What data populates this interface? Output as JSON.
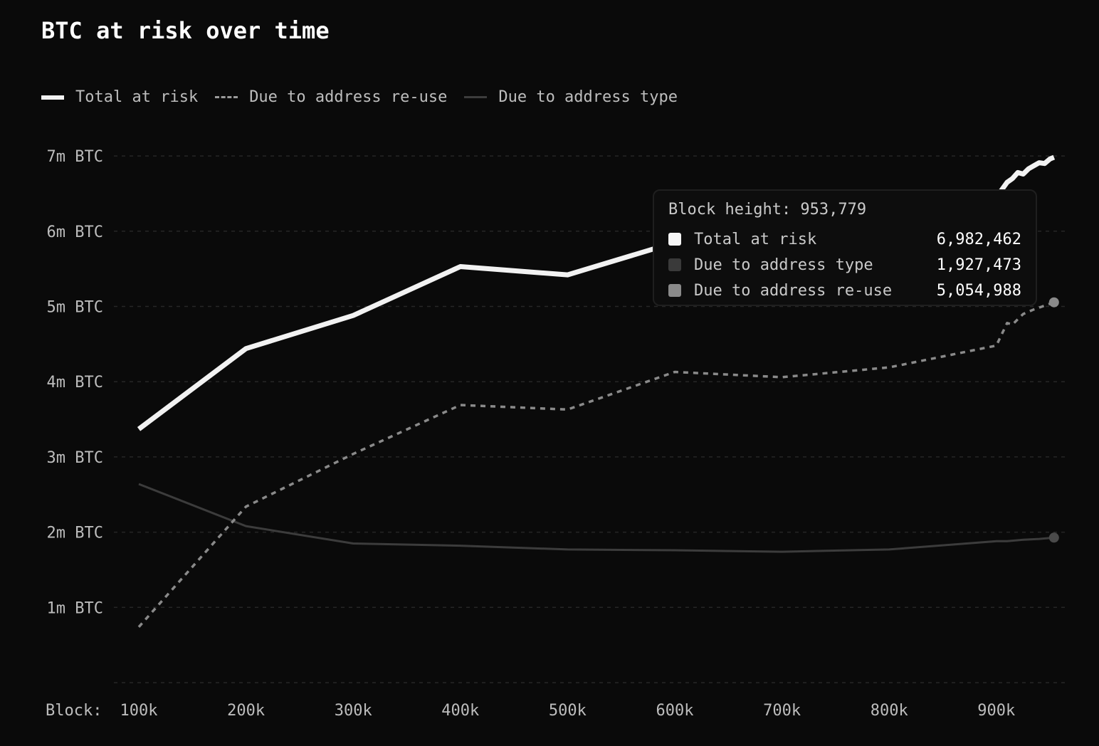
{
  "chart_data": {
    "type": "line",
    "title": "BTC at risk over time",
    "xlabel": "Block:",
    "ylabel": "",
    "x_ticks": [
      "100k",
      "200k",
      "300k",
      "400k",
      "500k",
      "600k",
      "700k",
      "800k",
      "900k"
    ],
    "y_ticks": [
      "1m BTC",
      "2m BTC",
      "3m BTC",
      "4m BTC",
      "5m BTC",
      "6m BTC",
      "7m BTC"
    ],
    "xlim": [
      100000,
      960000
    ],
    "ylim": [
      0,
      7400000
    ],
    "legend_position": "top-left",
    "grid": "horizontal-dashed",
    "colors": {
      "background": "#0a0a0a",
      "total": "#f2f2f2",
      "reuse": "#8a8a8a",
      "type": "#3c3c3c",
      "grid": "#262626"
    },
    "series": [
      {
        "name": "Total at risk",
        "key": "total",
        "style": "solid-thick",
        "points": [
          [
            100000,
            3370000
          ],
          [
            200000,
            4440000
          ],
          [
            300000,
            4880000
          ],
          [
            400000,
            5530000
          ],
          [
            500000,
            5420000
          ],
          [
            600000,
            5850000
          ],
          [
            700000,
            6010000
          ],
          [
            800000,
            6200000
          ],
          [
            900000,
            6450000
          ],
          [
            910000,
            6650000
          ],
          [
            915000,
            6700000
          ],
          [
            920000,
            6780000
          ],
          [
            925000,
            6760000
          ],
          [
            930000,
            6830000
          ],
          [
            935000,
            6870000
          ],
          [
            940000,
            6910000
          ],
          [
            945000,
            6900000
          ],
          [
            950000,
            6960000
          ],
          [
            953779,
            6982462
          ]
        ]
      },
      {
        "name": "Due to address re-use",
        "key": "reuse",
        "style": "dashed",
        "points": [
          [
            100000,
            740000
          ],
          [
            200000,
            2340000
          ],
          [
            300000,
            3040000
          ],
          [
            400000,
            3690000
          ],
          [
            500000,
            3630000
          ],
          [
            600000,
            4130000
          ],
          [
            700000,
            4060000
          ],
          [
            800000,
            4190000
          ],
          [
            900000,
            4480000
          ],
          [
            910000,
            4780000
          ],
          [
            915000,
            4760000
          ],
          [
            925000,
            4900000
          ],
          [
            935000,
            4960000
          ],
          [
            945000,
            5010000
          ],
          [
            953779,
            5054988
          ]
        ]
      },
      {
        "name": "Due to address type",
        "key": "type",
        "style": "solid-thin",
        "points": [
          [
            100000,
            2640000
          ],
          [
            200000,
            2080000
          ],
          [
            300000,
            1850000
          ],
          [
            400000,
            1820000
          ],
          [
            500000,
            1770000
          ],
          [
            600000,
            1760000
          ],
          [
            700000,
            1740000
          ],
          [
            800000,
            1770000
          ],
          [
            900000,
            1880000
          ],
          [
            910000,
            1880000
          ],
          [
            925000,
            1900000
          ],
          [
            940000,
            1910000
          ],
          [
            953779,
            1927473
          ]
        ]
      }
    ],
    "tooltip": {
      "header": "Block height: 953,779",
      "rows": [
        {
          "label": "Total at risk",
          "value": "6,982,462",
          "color": "#f5f5f5"
        },
        {
          "label": "Due to address type",
          "value": "1,927,473",
          "color": "#3a3a3a"
        },
        {
          "label": "Due to address re-use",
          "value": "5,054,988",
          "color": "#8a8a8a"
        }
      ]
    }
  },
  "legend": {
    "total": "Total at risk",
    "reuse": "Due to address re-use",
    "type": "Due to address type"
  }
}
